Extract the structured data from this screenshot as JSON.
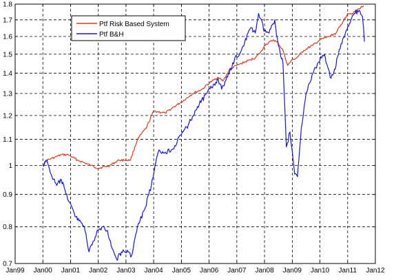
{
  "chart_data": {
    "type": "line",
    "title": "",
    "xlabel": "",
    "ylabel": "",
    "yscale": "log",
    "grid": true,
    "legend_position": "top-left",
    "xlim": [
      "1999-01-01",
      "2012-01-01"
    ],
    "ylim": [
      0.7,
      1.8
    ],
    "x_ticks": [
      {
        "date": "1999-01-01",
        "label": "Jan99"
      },
      {
        "date": "2000-01-01",
        "label": "Jan00"
      },
      {
        "date": "2001-01-01",
        "label": "Jan01"
      },
      {
        "date": "2002-01-01",
        "label": "Jan02"
      },
      {
        "date": "2003-01-01",
        "label": "Jan03"
      },
      {
        "date": "2004-01-01",
        "label": "Jan04"
      },
      {
        "date": "2005-01-01",
        "label": "Jan05"
      },
      {
        "date": "2006-01-01",
        "label": "Jan06"
      },
      {
        "date": "2007-01-01",
        "label": "Jan07"
      },
      {
        "date": "2008-01-01",
        "label": "Jan08"
      },
      {
        "date": "2009-01-01",
        "label": "Jan09"
      },
      {
        "date": "2010-01-01",
        "label": "Jan10"
      },
      {
        "date": "2011-01-01",
        "label": "Jan11"
      },
      {
        "date": "2012-01-01",
        "label": "Jan12"
      }
    ],
    "y_ticks": [
      0.7,
      0.8,
      0.9,
      1,
      1.1,
      1.2,
      1.3,
      1.4,
      1.5,
      1.6,
      1.7,
      1.8
    ],
    "series": [
      {
        "name": "Ptf Risk Based System",
        "color": "#d93a1a",
        "points": [
          [
            "2000-01-01",
            1.0
          ],
          [
            "2000-03-01",
            1.02
          ],
          [
            "2000-06-01",
            1.03
          ],
          [
            "2000-09-01",
            1.04
          ],
          [
            "2000-12-01",
            1.04
          ],
          [
            "2001-01-01",
            1.035
          ],
          [
            "2001-04-01",
            1.02
          ],
          [
            "2001-07-01",
            1.01
          ],
          [
            "2001-10-01",
            1.0
          ],
          [
            "2002-01-01",
            0.99
          ],
          [
            "2002-06-01",
            1.0
          ],
          [
            "2002-10-01",
            1.02
          ],
          [
            "2003-01-01",
            1.02
          ],
          [
            "2003-03-01",
            1.02
          ],
          [
            "2003-06-01",
            1.1
          ],
          [
            "2003-10-01",
            1.15
          ],
          [
            "2004-01-01",
            1.22
          ],
          [
            "2004-06-01",
            1.21
          ],
          [
            "2004-10-01",
            1.24
          ],
          [
            "2005-01-01",
            1.26
          ],
          [
            "2005-06-01",
            1.3
          ],
          [
            "2005-10-01",
            1.32
          ],
          [
            "2006-01-01",
            1.35
          ],
          [
            "2006-05-01",
            1.38
          ],
          [
            "2006-07-01",
            1.36
          ],
          [
            "2006-10-01",
            1.42
          ],
          [
            "2007-01-01",
            1.44
          ],
          [
            "2007-03-01",
            1.45
          ],
          [
            "2007-07-01",
            1.47
          ],
          [
            "2007-09-01",
            1.48
          ],
          [
            "2007-12-01",
            1.52
          ],
          [
            "2008-01-01",
            1.55
          ],
          [
            "2008-05-01",
            1.58
          ],
          [
            "2008-07-01",
            1.56
          ],
          [
            "2008-09-01",
            1.52
          ],
          [
            "2008-11-01",
            1.44
          ],
          [
            "2009-01-01",
            1.47
          ],
          [
            "2009-03-01",
            1.48
          ],
          [
            "2009-06-01",
            1.52
          ],
          [
            "2009-10-01",
            1.55
          ],
          [
            "2010-01-01",
            1.58
          ],
          [
            "2010-05-01",
            1.6
          ],
          [
            "2010-08-01",
            1.62
          ],
          [
            "2010-11-01",
            1.69
          ],
          [
            "2011-01-01",
            1.74
          ],
          [
            "2011-03-01",
            1.74
          ],
          [
            "2011-06-01",
            1.77
          ],
          [
            "2011-08-01",
            1.79
          ]
        ]
      },
      {
        "name": "Ptf B&H",
        "color": "#1414e6",
        "points": [
          [
            "2000-01-01",
            1.0
          ],
          [
            "2000-02-15",
            1.02
          ],
          [
            "2000-03-15",
            1.0
          ],
          [
            "2000-05-01",
            0.96
          ],
          [
            "2000-07-01",
            0.93
          ],
          [
            "2000-09-01",
            0.95
          ],
          [
            "2000-11-01",
            0.9
          ],
          [
            "2001-01-01",
            0.87
          ],
          [
            "2001-03-01",
            0.83
          ],
          [
            "2001-05-01",
            0.82
          ],
          [
            "2001-07-01",
            0.8
          ],
          [
            "2001-09-01",
            0.73
          ],
          [
            "2001-11-01",
            0.76
          ],
          [
            "2002-01-01",
            0.79
          ],
          [
            "2002-03-01",
            0.8
          ],
          [
            "2002-05-01",
            0.79
          ],
          [
            "2002-07-01",
            0.74
          ],
          [
            "2002-09-01",
            0.71
          ],
          [
            "2002-11-01",
            0.73
          ],
          [
            "2003-02-01",
            0.73
          ],
          [
            "2003-03-15",
            0.72
          ],
          [
            "2003-06-01",
            0.8
          ],
          [
            "2003-09-01",
            0.85
          ],
          [
            "2003-12-01",
            0.93
          ],
          [
            "2004-03-01",
            1.05
          ],
          [
            "2004-06-01",
            1.05
          ],
          [
            "2004-09-01",
            1.06
          ],
          [
            "2005-01-01",
            1.12
          ],
          [
            "2005-04-01",
            1.16
          ],
          [
            "2005-08-01",
            1.24
          ],
          [
            "2005-12-01",
            1.3
          ],
          [
            "2006-05-01",
            1.37
          ],
          [
            "2006-06-15",
            1.32
          ],
          [
            "2006-09-01",
            1.38
          ],
          [
            "2006-12-01",
            1.47
          ],
          [
            "2007-03-01",
            1.52
          ],
          [
            "2007-07-01",
            1.65
          ],
          [
            "2007-09-01",
            1.62
          ],
          [
            "2007-10-15",
            1.74
          ],
          [
            "2008-01-01",
            1.63
          ],
          [
            "2008-03-01",
            1.62
          ],
          [
            "2008-05-15",
            1.7
          ],
          [
            "2008-07-01",
            1.55
          ],
          [
            "2008-09-01",
            1.45
          ],
          [
            "2008-10-15",
            1.07
          ],
          [
            "2008-12-01",
            1.13
          ],
          [
            "2009-02-01",
            0.97
          ],
          [
            "2009-03-10",
            0.96
          ],
          [
            "2009-05-01",
            1.15
          ],
          [
            "2009-07-01",
            1.3
          ],
          [
            "2009-10-01",
            1.4
          ],
          [
            "2010-01-01",
            1.47
          ],
          [
            "2010-03-01",
            1.5
          ],
          [
            "2010-05-15",
            1.38
          ],
          [
            "2010-07-01",
            1.4
          ],
          [
            "2010-09-01",
            1.5
          ],
          [
            "2010-12-01",
            1.62
          ],
          [
            "2011-02-01",
            1.68
          ],
          [
            "2011-04-01",
            1.74
          ],
          [
            "2011-06-01",
            1.76
          ],
          [
            "2011-07-15",
            1.72
          ],
          [
            "2011-08-10",
            1.57
          ]
        ]
      }
    ]
  }
}
